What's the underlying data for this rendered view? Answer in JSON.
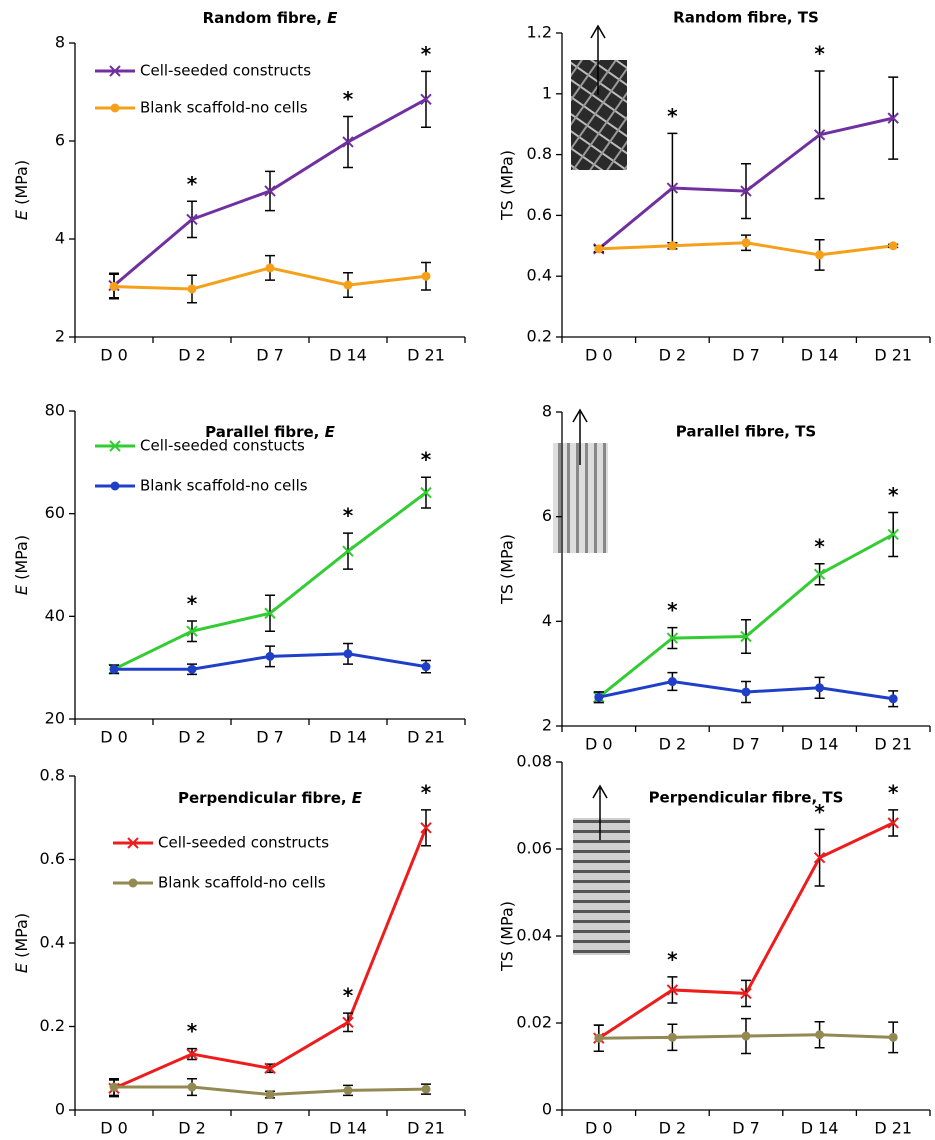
{
  "chart_data": [
    {
      "type": "line",
      "title": "Random fibre, E",
      "y_label": "E (MPa)",
      "italic_symbol": true,
      "legend": "upper left",
      "categories": [
        "D 0",
        "D 2",
        "D 7",
        "D 14",
        "D 21"
      ],
      "ylim": [
        2,
        8
      ],
      "yticks": [
        2,
        4,
        6,
        8
      ],
      "series": [
        {
          "name": "Cell-seeded constructs",
          "color": "#7030a0",
          "marker": "x",
          "values": [
            3.05,
            4.4,
            4.98,
            5.98,
            6.85
          ],
          "errors": [
            0.25,
            0.37,
            0.4,
            0.52,
            0.57
          ]
        },
        {
          "name": "Blank scaffold-no cells",
          "color": "#f5a01a",
          "marker": "o",
          "values": [
            3.03,
            2.98,
            3.41,
            3.06,
            3.24
          ],
          "errors": [
            0.25,
            0.28,
            0.25,
            0.25,
            0.28
          ]
        }
      ],
      "annotations": [
        {
          "x": "D 2",
          "text": "*"
        },
        {
          "x": "D 14",
          "text": "*"
        },
        {
          "x": "D 21",
          "text": "*"
        }
      ]
    },
    {
      "type": "line",
      "title": "Random fibre, TS",
      "y_label": "TS (MPa)",
      "italic_symbol": false,
      "categories": [
        "D 0",
        "D 2",
        "D 7",
        "D 14",
        "D 21"
      ],
      "ylim": [
        0.2,
        1.2
      ],
      "yticks": [
        0.2,
        0.4,
        0.6,
        0.8,
        1,
        1.2
      ],
      "series": [
        {
          "color": "#7030a0",
          "marker": "x",
          "values": [
            0.49,
            0.69,
            0.68,
            0.865,
            0.92
          ],
          "errors": [
            0.01,
            0.18,
            0.09,
            0.21,
            0.135
          ]
        },
        {
          "color": "#f5a01a",
          "marker": "o",
          "values": [
            0.49,
            0.5,
            0.51,
            0.47,
            0.5
          ],
          "errors": [
            0.01,
            0.01,
            0.025,
            0.05,
            0.005
          ]
        }
      ],
      "annotations": [
        {
          "x": "D 2",
          "text": "*"
        },
        {
          "x": "D 14",
          "text": "*"
        }
      ]
    },
    {
      "type": "line",
      "title": "Parallel fibre, E",
      "y_label": "E (MPa)",
      "italic_symbol": true,
      "legend": "upper left",
      "categories": [
        "D 0",
        "D 2",
        "D 7",
        "D 14",
        "D 21"
      ],
      "ylim": [
        20,
        80
      ],
      "yticks": [
        20,
        40,
        60,
        80
      ],
      "series": [
        {
          "name": "Cell-seeded constucts",
          "color": "#33cc33",
          "marker": "x",
          "values": [
            29.7,
            37.1,
            40.6,
            52.7,
            64.1
          ],
          "errors": [
            0.8,
            2,
            3.5,
            3.5,
            3
          ]
        },
        {
          "name": "Blank scaffold-no cells",
          "color": "#1f3fc8",
          "marker": "o",
          "values": [
            29.7,
            29.7,
            32.2,
            32.7,
            30.2
          ],
          "errors": [
            0.8,
            1,
            2,
            2,
            1.2
          ]
        }
      ],
      "annotations": [
        {
          "x": "D 2",
          "text": "*"
        },
        {
          "x": "D 14",
          "text": "*"
        },
        {
          "x": "D 21",
          "text": "*"
        }
      ]
    },
    {
      "type": "line",
      "title": "Parallel fibre, TS",
      "y_label": "TS (MPa)",
      "italic_symbol": false,
      "categories": [
        "D 0",
        "D 2",
        "D 7",
        "D 14",
        "D 21"
      ],
      "ylim": [
        2,
        8
      ],
      "yticks": [
        2,
        4,
        6,
        8
      ],
      "series": [
        {
          "color": "#33cc33",
          "marker": "x",
          "values": [
            2.55,
            3.68,
            3.71,
            4.9,
            5.66
          ],
          "errors": [
            0.1,
            0.2,
            0.32,
            0.2,
            0.42
          ]
        },
        {
          "color": "#1f3fc8",
          "marker": "o",
          "values": [
            2.55,
            2.85,
            2.65,
            2.73,
            2.52
          ],
          "errors": [
            0.1,
            0.17,
            0.2,
            0.2,
            0.15
          ]
        }
      ],
      "annotations": [
        {
          "x": "D 2",
          "text": "*"
        },
        {
          "x": "D 14",
          "text": "*"
        },
        {
          "x": "D 21",
          "text": "*"
        }
      ]
    },
    {
      "type": "line",
      "title": "Perpendicular fibre, E",
      "y_label": "E (MPa)",
      "italic_symbol": true,
      "legend": "upper left",
      "categories": [
        "D 0",
        "D 2",
        "D 7",
        "D 14",
        "D 21"
      ],
      "ylim": [
        0,
        0.8
      ],
      "yticks": [
        0,
        0.2,
        0.4,
        0.6,
        0.8
      ],
      "series": [
        {
          "name": "Cell-seeded constructs",
          "color": "#ee1c1c",
          "marker": "x",
          "values": [
            0.052,
            0.134,
            0.1,
            0.21,
            0.676
          ],
          "errors": [
            0.02,
            0.013,
            0.01,
            0.022,
            0.043
          ]
        },
        {
          "name": "Blank scaffold-no cells",
          "color": "#938953",
          "marker": "o",
          "values": [
            0.055,
            0.055,
            0.037,
            0.047,
            0.05
          ],
          "errors": [
            0.02,
            0.02,
            0.008,
            0.012,
            0.012
          ]
        }
      ],
      "annotations": [
        {
          "x": "D 2",
          "text": "*"
        },
        {
          "x": "D 14",
          "text": "*"
        },
        {
          "x": "D 21",
          "text": "*"
        }
      ]
    },
    {
      "type": "line",
      "title": "Perpendicular fibre, TS",
      "y_label": "TS (MPa)",
      "italic_symbol": false,
      "categories": [
        "D 0",
        "D 2",
        "D 7",
        "D 14",
        "D 21"
      ],
      "ylim": [
        0,
        0.08
      ],
      "yticks": [
        0,
        0.02,
        0.04,
        0.06,
        0.08
      ],
      "series": [
        {
          "color": "#ee1c1c",
          "marker": "x",
          "values": [
            0.0165,
            0.0276,
            0.0268,
            0.058,
            0.066
          ],
          "errors": [
            0.003,
            0.003,
            0.003,
            0.0065,
            0.003
          ]
        },
        {
          "color": "#938953",
          "marker": "o",
          "values": [
            0.0165,
            0.0167,
            0.017,
            0.0173,
            0.0167
          ],
          "errors": [
            0.003,
            0.003,
            0.004,
            0.003,
            0.0035
          ]
        }
      ],
      "annotations": [
        {
          "x": "D 2",
          "text": "*"
        },
        {
          "x": "D 14",
          "text": "*"
        },
        {
          "x": "D 21",
          "text": "*"
        }
      ]
    }
  ]
}
